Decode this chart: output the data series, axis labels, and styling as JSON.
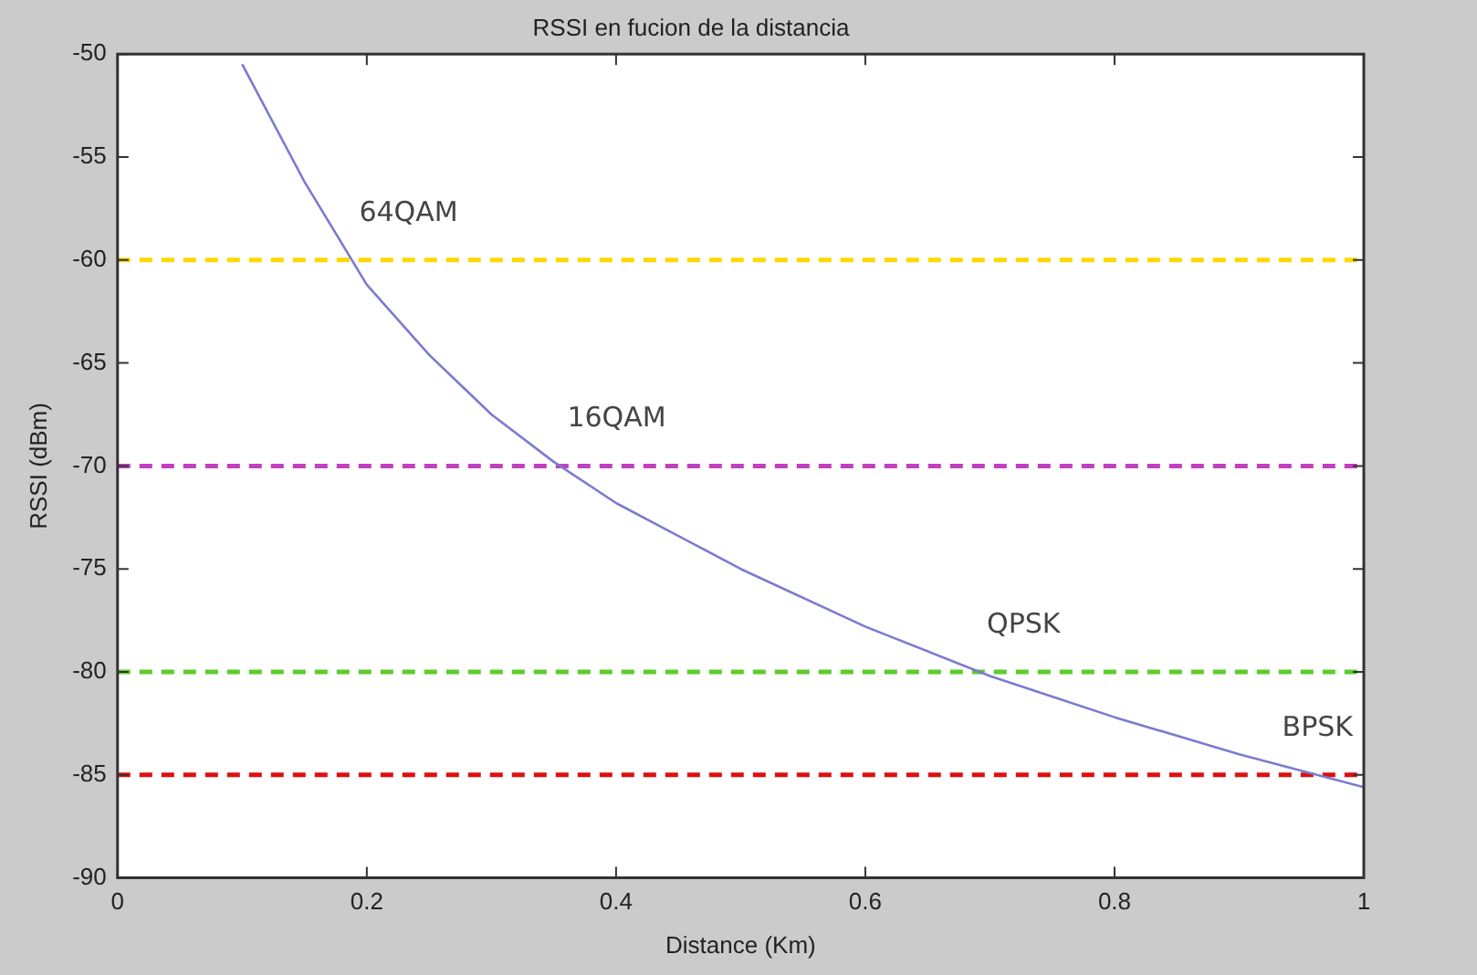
{
  "chart_data": {
    "type": "line",
    "title": "RSSI en fucion de la distancia",
    "xlabel": "Distance (Km)",
    "ylabel": "RSSI (dBm)",
    "x": [
      0.1,
      0.15,
      0.2,
      0.25,
      0.3,
      0.35,
      0.4,
      0.5,
      0.6,
      0.7,
      0.8,
      0.9,
      1.0
    ],
    "series": [
      {
        "color": "#7b7bd0",
        "values": [
          -50.5,
          -56.2,
          -61.2,
          -64.6,
          -67.5,
          -69.8,
          -71.8,
          -75.0,
          -77.8,
          -80.2,
          -82.2,
          -84.0,
          -85.6
        ]
      }
    ],
    "xlim": [
      0,
      1
    ],
    "xticks": [
      0,
      0.2,
      0.4,
      0.6,
      0.8,
      1
    ],
    "ylim": [
      -90,
      -50
    ],
    "yticks": [
      -90,
      -85,
      -80,
      -75,
      -70,
      -65,
      -60,
      -55,
      -50
    ],
    "ref_lines": [
      {
        "axis": "y",
        "value": -60,
        "label": "64QAM",
        "color": "#ffd700",
        "line_style": "dashed"
      },
      {
        "axis": "y",
        "value": -70,
        "label": "16QAM",
        "color": "#c040c0",
        "line_style": "dashed"
      },
      {
        "axis": "y",
        "value": -80,
        "label": "QPSK",
        "color": "#5ccc2a",
        "line_style": "dashed"
      },
      {
        "axis": "y",
        "value": -85,
        "label": "BPSK",
        "color": "#dd1010",
        "line_style": "dashed"
      }
    ],
    "grid": false,
    "legend": false,
    "marker": "none",
    "line_style": "solid"
  }
}
